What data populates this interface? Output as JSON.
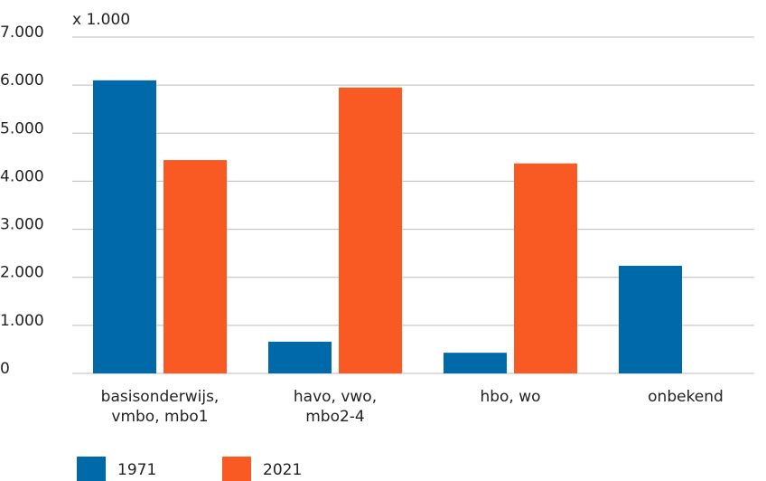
{
  "chart_data": {
    "type": "bar",
    "y_unit_label": "x 1.000",
    "categories": [
      "basisonderwijs,\nvmbo, mbo1",
      "havo, vwo,\nmbo2-4",
      "hbo, wo",
      "onbekend"
    ],
    "series": [
      {
        "name": "1971",
        "color": "#0069aa",
        "values": [
          6100,
          660,
          430,
          2240
        ]
      },
      {
        "name": "2021",
        "color": "#f95a24",
        "values": [
          4440,
          5950,
          4370,
          null
        ]
      }
    ],
    "ylim": [
      0,
      7000
    ],
    "yticks": [
      0,
      {
        "value": 1000,
        "label": "1.000"
      },
      {
        "value": 2000,
        "label": "2.000"
      },
      {
        "value": 3000,
        "label": "3.000"
      },
      {
        "value": 4000,
        "label": "4.000"
      },
      {
        "value": 5000,
        "label": "5.000"
      },
      {
        "value": 6000,
        "label": "6.000"
      },
      {
        "value": 7000,
        "label": "7.000"
      }
    ],
    "grid": true
  }
}
